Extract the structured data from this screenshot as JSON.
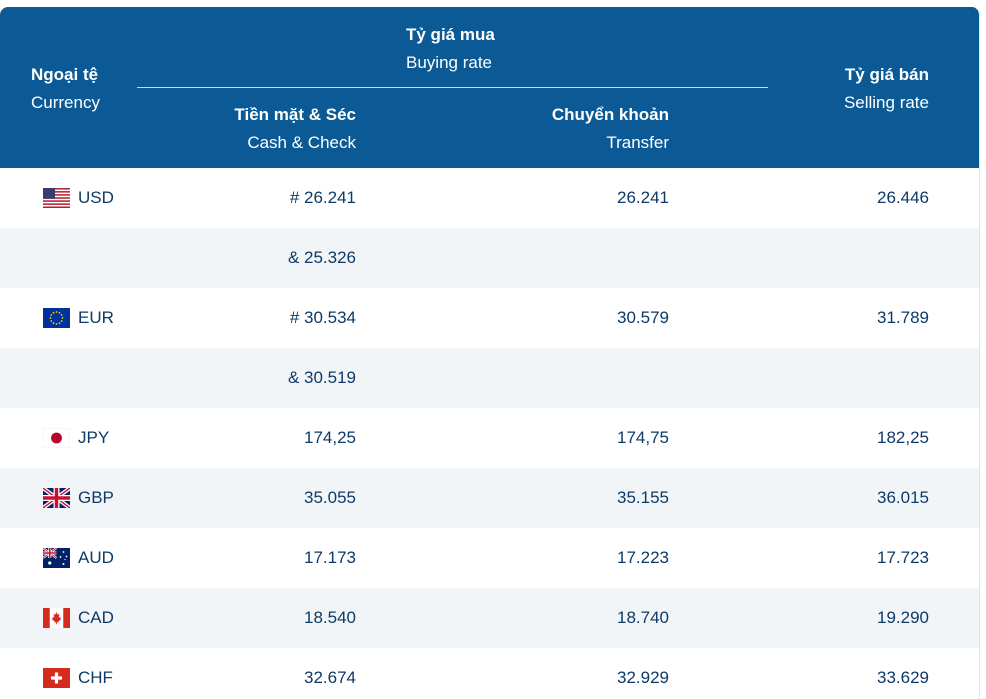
{
  "header": {
    "currency_vi": "Ngoại tệ",
    "currency_en": "Currency",
    "buying_vi": "Tỷ giá mua",
    "buying_en": "Buying rate",
    "cash_vi": "Tiền mặt & Séc",
    "cash_en": "Cash & Check",
    "transfer_vi": "Chuyển khoản",
    "transfer_en": "Transfer",
    "selling_vi": "Tỷ giá bán",
    "selling_en": "Selling rate"
  },
  "rows": [
    {
      "code": "USD",
      "flag": "us-flag-icon",
      "cash": "# 26.241",
      "transfer": "26.241",
      "selling": "26.446"
    },
    {
      "code": "",
      "flag": "",
      "cash": "& 25.326",
      "transfer": "",
      "selling": ""
    },
    {
      "code": "EUR",
      "flag": "eu-flag-icon",
      "cash": "# 30.534",
      "transfer": "30.579",
      "selling": "31.789"
    },
    {
      "code": "",
      "flag": "",
      "cash": "& 30.519",
      "transfer": "",
      "selling": ""
    },
    {
      "code": "JPY",
      "flag": "jp-flag-icon",
      "cash": "174,25",
      "transfer": "174,75",
      "selling": "182,25"
    },
    {
      "code": "GBP",
      "flag": "uk-flag-icon",
      "cash": "35.055",
      "transfer": "35.155",
      "selling": "36.015"
    },
    {
      "code": "AUD",
      "flag": "au-flag-icon",
      "cash": "17.173",
      "transfer": "17.223",
      "selling": "17.723"
    },
    {
      "code": "CAD",
      "flag": "ca-flag-icon",
      "cash": "18.540",
      "transfer": "18.740",
      "selling": "19.290"
    },
    {
      "code": "CHF",
      "flag": "ch-flag-icon",
      "cash": "32.674",
      "transfer": "32.929",
      "selling": "33.629"
    }
  ],
  "colors": {
    "header_bg": "#0b5a95",
    "text": "#0d3a66",
    "row_alt": "#f2f5f8"
  }
}
